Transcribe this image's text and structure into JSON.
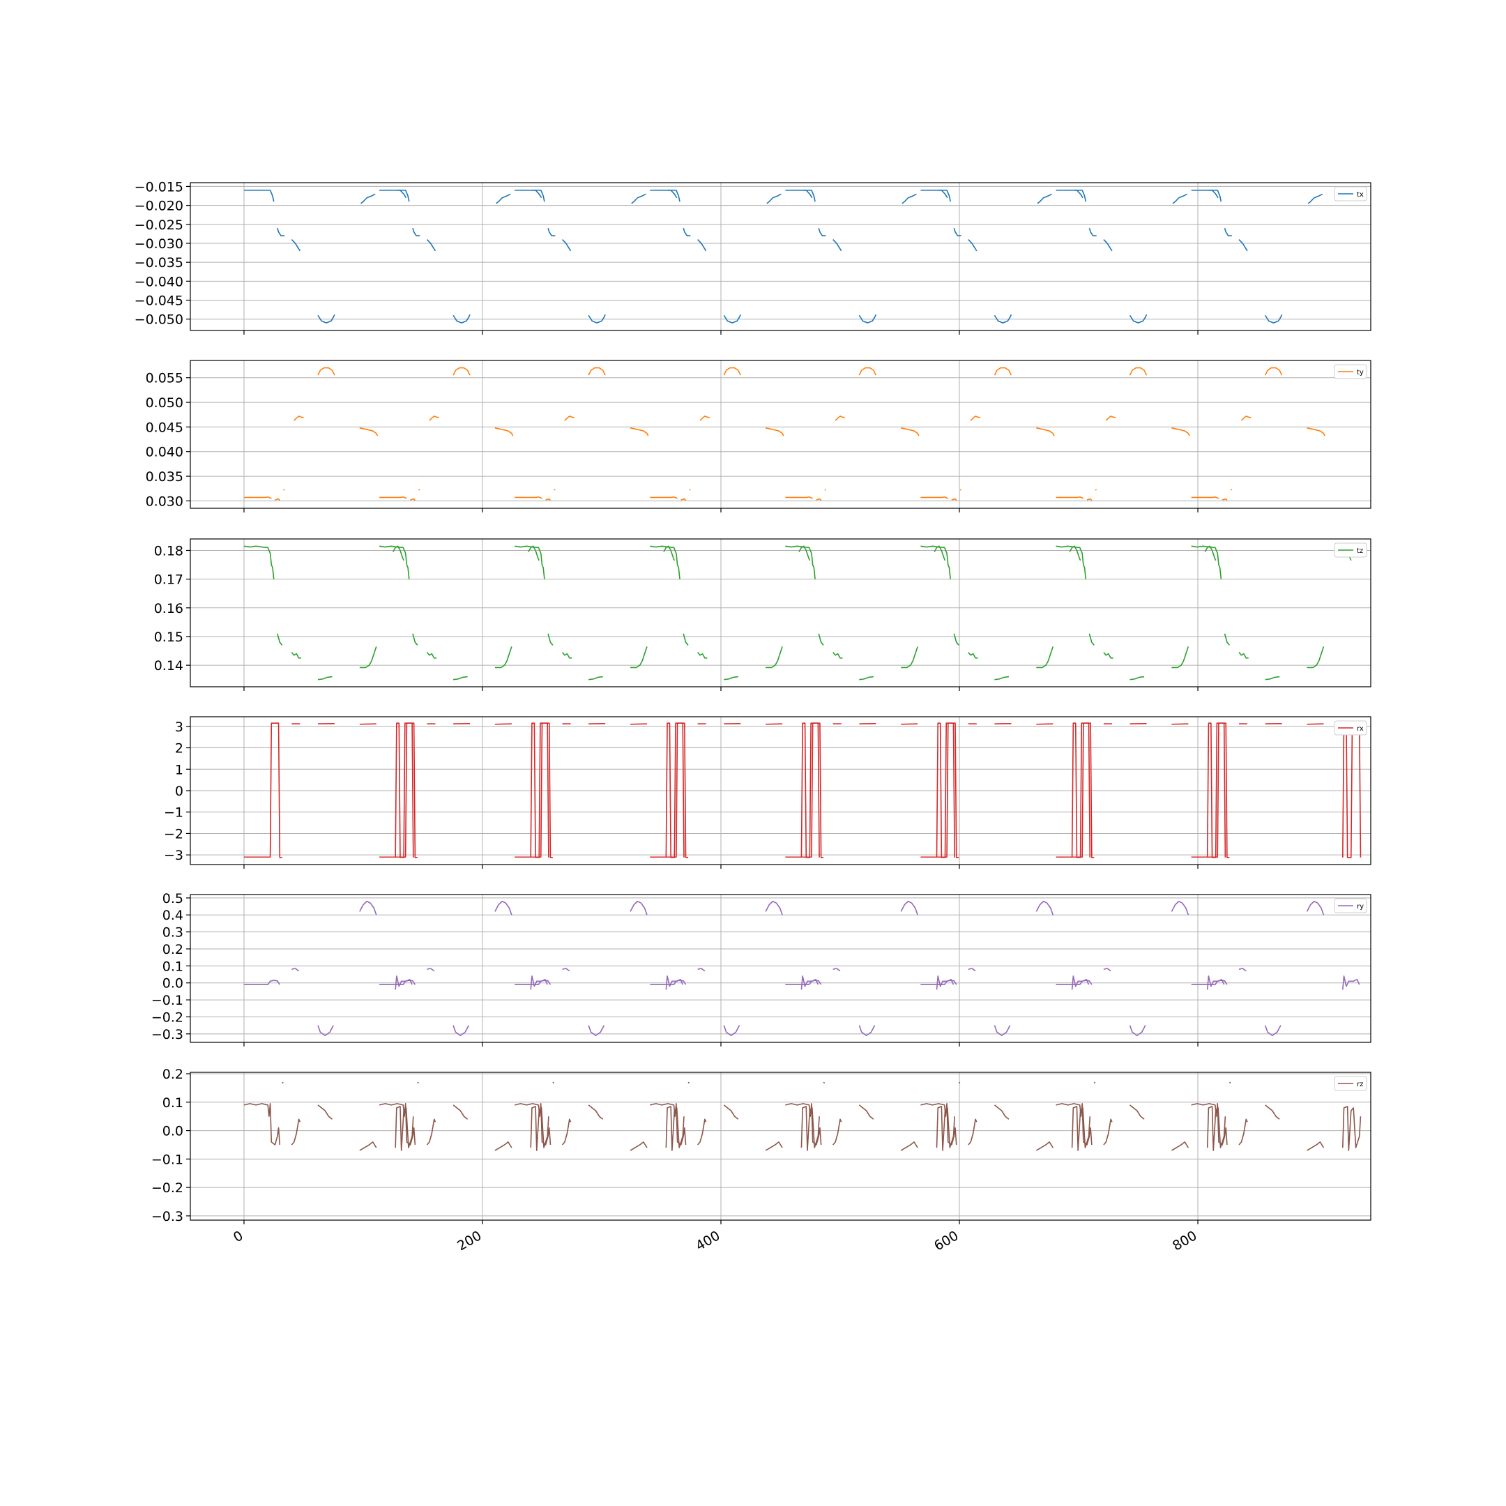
{
  "chart_data": {
    "type": "line",
    "layout": "stacked-subplots",
    "shared_x": true,
    "x_ticks": [
      0,
      200,
      400,
      600,
      800
    ],
    "x_tick_labels": [
      "0",
      "200",
      "400",
      "600",
      "800"
    ],
    "xlim": [
      -45,
      945
    ],
    "grid": true,
    "legend_placement": "top-right",
    "period": 113.5,
    "periods": 8,
    "panels": [
      {
        "name": "tx",
        "color": "#1f77b4",
        "ylim": [
          -0.053,
          -0.014
        ],
        "ticks": [
          -0.015,
          -0.02,
          -0.025,
          -0.03,
          -0.035,
          -0.04,
          -0.045,
          -0.05
        ],
        "tick_labels": [
          "−0.015",
          "−0.020",
          "−0.025",
          "−0.030",
          "−0.035",
          "−0.040",
          "−0.045",
          "−0.050"
        ],
        "segments": [
          [
            [
              0,
              -0.016
            ],
            [
              22,
              -0.016
            ],
            [
              24,
              -0.0175
            ],
            [
              25,
              -0.019
            ]
          ],
          [
            [
              28,
              -0.026
            ],
            [
              29,
              -0.027
            ],
            [
              31,
              -0.028
            ],
            [
              34,
              -0.028
            ]
          ],
          [
            [
              40,
              -0.029
            ],
            [
              43,
              -0.03
            ],
            [
              45,
              -0.031
            ],
            [
              47,
              -0.032
            ]
          ],
          [
            [
              62,
              -0.049
            ],
            [
              65,
              -0.0505
            ],
            [
              69,
              -0.051
            ],
            [
              73,
              -0.0505
            ],
            [
              75,
              -0.0495
            ],
            [
              76,
              -0.0488
            ]
          ],
          [
            [
              98,
              -0.0195
            ],
            [
              100,
              -0.019
            ],
            [
              103,
              -0.018
            ],
            [
              107,
              -0.0175
            ],
            [
              110,
              -0.017
            ]
          ],
          [
            [
              128,
              -0.016
            ],
            [
              131,
              -0.016
            ],
            [
              134,
              -0.017
            ],
            [
              136,
              -0.018
            ]
          ]
        ]
      },
      {
        "name": "ty",
        "color": "#ff7f0e",
        "ylim": [
          0.0285,
          0.0585
        ],
        "ticks": [
          0.03,
          0.035,
          0.04,
          0.045,
          0.05,
          0.055
        ],
        "tick_labels": [
          "0.030",
          "0.035",
          "0.040",
          "0.045",
          "0.050",
          "0.055"
        ],
        "segments": [
          [
            [
              0,
              0.0307
            ],
            [
              18,
              0.0307
            ],
            [
              20,
              0.0308
            ],
            [
              23,
              0.0305
            ]
          ],
          [
            [
              26,
              0.0302
            ],
            [
              29,
              0.0304
            ],
            [
              30,
              0.0301
            ]
          ],
          [
            [
              33,
              0.0322
            ],
            [
              34,
              0.0323
            ]
          ],
          [
            [
              42,
              0.0463
            ],
            [
              44,
              0.0468
            ],
            [
              46,
              0.0472
            ],
            [
              48,
              0.047
            ],
            [
              50,
              0.0469
            ]
          ],
          [
            [
              62,
              0.0555
            ],
            [
              64,
              0.0565
            ],
            [
              67,
              0.057
            ],
            [
              71,
              0.057
            ],
            [
              74,
              0.0565
            ],
            [
              76,
              0.0555
            ]
          ],
          [
            [
              97,
              0.0448
            ],
            [
              103,
              0.0445
            ],
            [
              108,
              0.0442
            ],
            [
              111,
              0.0437
            ],
            [
              112,
              0.0432
            ]
          ]
        ]
      },
      {
        "name": "tz",
        "color": "#2ca02c",
        "ylim": [
          0.1325,
          0.184
        ],
        "ticks": [
          0.14,
          0.15,
          0.16,
          0.17,
          0.18
        ],
        "tick_labels": [
          "0.14",
          "0.15",
          "0.16",
          "0.17",
          "0.18"
        ],
        "segments": [
          [
            [
              0,
              0.1815
            ],
            [
              5,
              0.1812
            ],
            [
              10,
              0.1815
            ],
            [
              15,
              0.1812
            ],
            [
              20,
              0.181
            ],
            [
              22,
              0.179
            ],
            [
              23,
              0.175
            ],
            [
              24,
              0.174
            ],
            [
              25,
              0.17
            ]
          ],
          [
            [
              28,
              0.151
            ],
            [
              29,
              0.1495
            ],
            [
              30,
              0.148
            ],
            [
              32,
              0.147
            ]
          ],
          [
            [
              40,
              0.1445
            ],
            [
              42,
              0.1435
            ],
            [
              44,
              0.144
            ],
            [
              46,
              0.1425
            ],
            [
              48,
              0.1425
            ]
          ],
          [
            [
              62,
              0.135
            ],
            [
              66,
              0.1352
            ],
            [
              70,
              0.1358
            ],
            [
              74,
              0.136
            ]
          ],
          [
            [
              97,
              0.1392
            ],
            [
              102,
              0.1392
            ],
            [
              105,
              0.14
            ],
            [
              107,
              0.1415
            ],
            [
              109,
              0.144
            ],
            [
              111,
              0.1465
            ]
          ],
          [
            [
              125,
              0.1795
            ],
            [
              127,
              0.181
            ],
            [
              129,
              0.1815
            ],
            [
              131,
              0.18
            ],
            [
              133,
              0.1775
            ],
            [
              134,
              0.1765
            ]
          ]
        ]
      },
      {
        "name": "rx",
        "color": "#d62728",
        "ylim": [
          -3.45,
          3.45
        ],
        "ticks": [
          -3,
          -2,
          -1,
          0,
          1,
          2,
          3
        ],
        "tick_labels": [
          "−3",
          "−2",
          "−1",
          "0",
          "1",
          "2",
          "3"
        ],
        "segments": [
          [
            [
              0,
              -3.1
            ],
            [
              20,
              -3.1
            ],
            [
              22,
              -3.1
            ],
            [
              23,
              3.15
            ],
            [
              29,
              3.15
            ],
            [
              30,
              -3.12
            ],
            [
              32,
              -3.12
            ]
          ],
          [
            [
              40,
              3.12
            ],
            [
              47,
              3.12
            ]
          ],
          [
            [
              62,
              3.12
            ],
            [
              76,
              3.13
            ]
          ],
          [
            [
              97,
              3.1
            ],
            [
              111,
              3.12
            ]
          ],
          [
            [
              127,
              -3.12
            ],
            [
              128,
              3.15
            ],
            [
              130,
              3.15
            ],
            [
              131,
              -3.12
            ],
            [
              134,
              -3.12
            ],
            [
              135,
              3.15
            ],
            [
              141,
              3.15
            ],
            [
              142,
              -3.12
            ]
          ]
        ]
      },
      {
        "name": "ry",
        "color": "#9467bd",
        "ylim": [
          -0.35,
          0.52
        ],
        "ticks": [
          -0.3,
          -0.2,
          -0.1,
          0.0,
          0.1,
          0.2,
          0.3,
          0.4,
          0.5
        ],
        "tick_labels": [
          "−0.3",
          "−0.2",
          "−0.1",
          "0.0",
          "0.1",
          "0.2",
          "0.3",
          "0.4",
          "0.5"
        ],
        "segments": [
          [
            [
              0,
              -0.01
            ],
            [
              20,
              -0.01
            ],
            [
              22,
              0.01
            ],
            [
              25,
              0.015
            ],
            [
              28,
              0.012
            ],
            [
              30,
              -0.01
            ]
          ],
          [
            [
              40,
              0.08
            ],
            [
              43,
              0.085
            ],
            [
              46,
              0.07
            ]
          ],
          [
            [
              62,
              -0.25
            ],
            [
              64,
              -0.29
            ],
            [
              68,
              -0.31
            ],
            [
              72,
              -0.29
            ],
            [
              75,
              -0.25
            ]
          ],
          [
            [
              97,
              0.42
            ],
            [
              100,
              0.46
            ],
            [
              103,
              0.48
            ],
            [
              106,
              0.47
            ],
            [
              109,
              0.44
            ],
            [
              111,
              0.4
            ]
          ],
          [
            [
              127,
              -0.04
            ],
            [
              128,
              0.04
            ],
            [
              130,
              -0.02
            ],
            [
              132,
              0.01
            ],
            [
              136,
              0.01
            ],
            [
              139,
              0.02
            ],
            [
              141,
              -0.01
            ]
          ]
        ]
      },
      {
        "name": "rz",
        "color": "#8c564b",
        "ylim": [
          -0.315,
          0.205
        ],
        "ticks": [
          -0.3,
          -0.2,
          -0.1,
          0.0,
          0.1,
          0.2
        ],
        "tick_labels": [
          "−0.3",
          "−0.2",
          "−0.1",
          "0.0",
          "0.1",
          "0.2"
        ],
        "segments": [
          [
            [
              0,
              0.09
            ],
            [
              5,
              0.095
            ],
            [
              10,
              0.09
            ],
            [
              15,
              0.095
            ],
            [
              20,
              0.09
            ],
            [
              21,
              0.05
            ],
            [
              22,
              0.095
            ],
            [
              23,
              -0.04
            ],
            [
              26,
              -0.05
            ],
            [
              28,
              -0.02
            ],
            [
              29,
              0.01
            ],
            [
              30,
              -0.05
            ]
          ],
          [
            [
              32,
              0.17
            ],
            [
              33,
              0.167
            ]
          ],
          [
            [
              40,
              -0.05
            ],
            [
              42,
              -0.04
            ],
            [
              44,
              -0.01
            ],
            [
              46,
              0.04
            ],
            [
              47,
              0.03
            ]
          ],
          [
            [
              62,
              0.09
            ],
            [
              65,
              0.08
            ],
            [
              68,
              0.07
            ],
            [
              71,
              0.05
            ],
            [
              74,
              0.04
            ]
          ],
          [
            [
              97,
              -0.07
            ],
            [
              101,
              -0.06
            ],
            [
              105,
              -0.05
            ],
            [
              108,
              -0.04
            ],
            [
              111,
              -0.06
            ]
          ],
          [
            [
              127,
              -0.06
            ],
            [
              128,
              0.08
            ],
            [
              131,
              0.085
            ],
            [
              132,
              -0.07
            ],
            [
              134,
              0.07
            ],
            [
              136,
              0.08
            ],
            [
              138,
              -0.06
            ],
            [
              141,
              -0.02
            ],
            [
              142,
              0.05
            ]
          ]
        ]
      }
    ]
  }
}
